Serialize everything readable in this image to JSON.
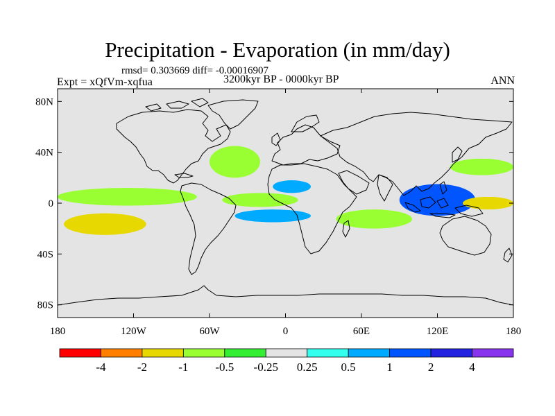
{
  "chart_data": {
    "type": "heatmap",
    "title": "Precipitation - Evaporation (in mm/day)",
    "stats_text": "rmsd= 0.303669 diff= -0.00016907",
    "left_string": "Expt = xQfVm-xqfua",
    "center_string": "3200kyr BP - 0000kyr BP",
    "right_string": "ANN",
    "x_ticks": [
      "180",
      "120W",
      "60W",
      "0",
      "60E",
      "120E",
      "180"
    ],
    "x_tick_values": [
      -180,
      -120,
      -60,
      0,
      60,
      120,
      180
    ],
    "y_ticks": [
      "80N",
      "40N",
      "0",
      "40S",
      "80S"
    ],
    "y_tick_values": [
      80,
      40,
      0,
      -40,
      -80
    ],
    "xlim": [
      -180,
      180
    ],
    "ylim": [
      -90,
      90
    ],
    "colorbar": {
      "colors": [
        "#ff0000",
        "#ff8000",
        "#e6d800",
        "#99ff33",
        "#33ee33",
        "#e4e4e4",
        "#33ffee",
        "#00aaff",
        "#0055ff",
        "#2222e0",
        "#8833ee"
      ],
      "levels": [
        "-4",
        "-2",
        "-1",
        "-0.5",
        "-0.25",
        "0.25",
        "0.5",
        "1",
        "2",
        "4"
      ]
    },
    "background_color": "#e4e4e4",
    "features": [
      {
        "name": "tropical-pacific-east-band",
        "level": "-0.5",
        "lon": [
          -180,
          -70
        ],
        "lat": [
          -2,
          12
        ]
      },
      {
        "name": "pacific-south-band",
        "level": "-1",
        "lon": [
          -175,
          -110
        ],
        "lat": [
          -25,
          -8
        ]
      },
      {
        "name": "atlantic-itcz",
        "level": "-0.5",
        "lon": [
          -50,
          10
        ],
        "lat": [
          -3,
          8
        ]
      },
      {
        "name": "west-africa-wet",
        "level": "0.5",
        "lon": [
          -10,
          20
        ],
        "lat": [
          8,
          18
        ]
      },
      {
        "name": "indian-ocean-dry",
        "level": "-0.5",
        "lon": [
          40,
          100
        ],
        "lat": [
          -20,
          -5
        ]
      },
      {
        "name": "south-atlantic-wet",
        "level": "0.5",
        "lon": [
          -40,
          20
        ],
        "lat": [
          -15,
          -5
        ]
      },
      {
        "name": "maritime-continent-wet",
        "level": "1",
        "lon": [
          90,
          150
        ],
        "lat": [
          -10,
          15
        ]
      },
      {
        "name": "west-pacific-dry",
        "level": "-1",
        "lon": [
          140,
          180
        ],
        "lat": [
          -5,
          5
        ]
      },
      {
        "name": "north-atlantic-dry",
        "level": "-0.5",
        "lon": [
          -60,
          -20
        ],
        "lat": [
          20,
          45
        ]
      },
      {
        "name": "north-pacific-dry",
        "level": "-0.5",
        "lon": [
          130,
          180
        ],
        "lat": [
          22,
          35
        ]
      }
    ]
  }
}
